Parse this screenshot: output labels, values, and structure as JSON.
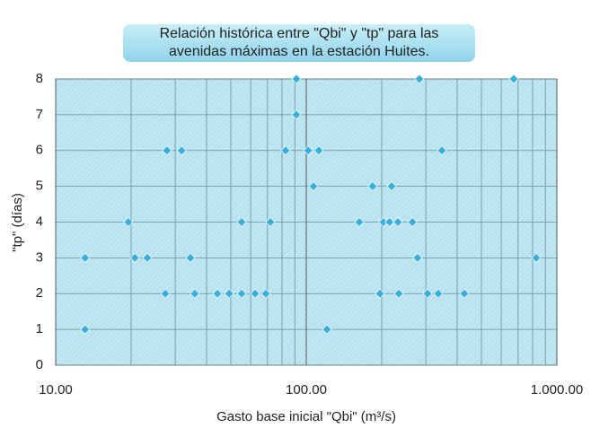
{
  "chart_data": {
    "type": "scatter",
    "title": [
      "Relación  histórica entre \"Qbi\" y \"tp\" para las",
      "avenidas máximas en la estación Huites."
    ],
    "xlabel": "Gasto base inicial \"Qbi\" (m³/s)",
    "ylabel": "\"tp\" (días)",
    "color": "#3aaedb",
    "xlog": true,
    "grid": true,
    "xlim": [
      10,
      1000
    ],
    "xticks": [
      {
        "value": 10,
        "label": "10.00"
      },
      {
        "value": 100,
        "label": "100.00"
      },
      {
        "value": 1000,
        "label": "1.000.00"
      }
    ],
    "xminor": [
      20,
      30,
      40,
      50,
      60,
      70,
      80,
      90,
      200,
      300,
      400,
      500,
      600,
      700,
      800,
      900
    ],
    "ylim": [
      0,
      8
    ],
    "yticks": [
      0,
      1,
      2,
      3,
      4,
      5,
      6,
      7,
      8
    ],
    "x": [
      91.3,
      282.8,
      673,
      91.3,
      27.8,
      31.8,
      82.7,
      101.7,
      112.2,
      347.6,
      106.8,
      184,
      219,
      19.5,
      55.2,
      71.9,
      162.7,
      203,
      215,
      232,
      265,
      13.1,
      20.7,
      23.2,
      34.5,
      278,
      827,
      27.4,
      35.9,
      44.2,
      49.2,
      55.2,
      62.5,
      69,
      196.7,
      234,
      304.8,
      336.5,
      427.3,
      13.1,
      120.9
    ],
    "values": [
      8,
      8,
      8,
      7,
      6,
      6,
      6,
      6,
      6,
      6,
      5,
      5,
      5,
      4,
      4,
      4,
      4,
      4,
      4,
      4,
      4,
      3,
      3,
      3,
      3,
      3,
      3,
      2,
      2,
      2,
      2,
      2,
      2,
      2,
      2,
      2,
      2,
      2,
      2,
      1,
      1
    ]
  }
}
